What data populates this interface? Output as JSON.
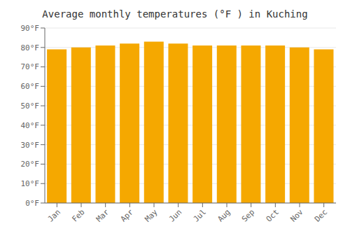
{
  "chart_data": {
    "type": "bar",
    "title": "Average monthly temperatures (°F ) in Kuching",
    "categories": [
      "Jan",
      "Feb",
      "Mar",
      "Apr",
      "May",
      "Jun",
      "Jul",
      "Aug",
      "Sep",
      "Oct",
      "Nov",
      "Dec"
    ],
    "values": [
      79,
      80,
      81,
      82,
      83,
      82,
      81,
      81,
      81,
      81,
      80,
      79
    ],
    "color": "#F5A800",
    "ylim": [
      0,
      90
    ],
    "yticks": [
      {
        "value": 0,
        "label": "0°F"
      },
      {
        "value": 10,
        "label": "10°F"
      },
      {
        "value": 20,
        "label": "20°F"
      },
      {
        "value": 30,
        "label": "30°F"
      },
      {
        "value": 40,
        "label": "40°F"
      },
      {
        "value": 50,
        "label": "50°F"
      },
      {
        "value": 60,
        "label": "60°F"
      },
      {
        "value": 70,
        "label": "70°F"
      },
      {
        "value": 80,
        "label": "80°F"
      },
      {
        "value": 90,
        "label": "90°F"
      }
    ],
    "grid": true
  }
}
